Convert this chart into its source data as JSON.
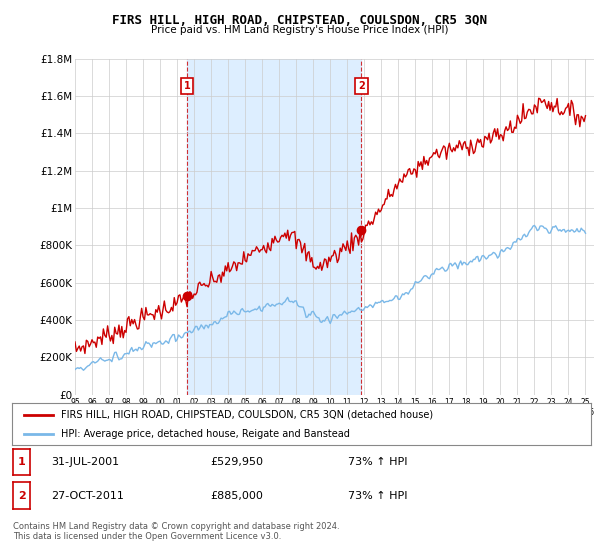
{
  "title": "FIRS HILL, HIGH ROAD, CHIPSTEAD, COULSDON, CR5 3QN",
  "subtitle": "Price paid vs. HM Land Registry's House Price Index (HPI)",
  "ylim": [
    0,
    1800000
  ],
  "yticks": [
    0,
    200000,
    400000,
    600000,
    800000,
    1000000,
    1200000,
    1400000,
    1600000,
    1800000
  ],
  "ytick_labels": [
    "£0",
    "£200K",
    "£400K",
    "£600K",
    "£800K",
    "£1M",
    "£1.2M",
    "£1.4M",
    "£1.6M",
    "£1.8M"
  ],
  "hpi_color": "#7ab8e8",
  "price_color": "#cc0000",
  "shade_color": "#ddeeff",
  "marker1_x": 2001.58,
  "marker1_y": 529950,
  "marker1_label": "1",
  "marker2_x": 2011.83,
  "marker2_y": 885000,
  "marker2_label": "2",
  "vline1_x": 2001.58,
  "vline2_x": 2011.83,
  "legend_price_label": "FIRS HILL, HIGH ROAD, CHIPSTEAD, COULSDON, CR5 3QN (detached house)",
  "legend_hpi_label": "HPI: Average price, detached house, Reigate and Banstead",
  "table_rows": [
    {
      "num": "1",
      "date": "31-JUL-2001",
      "price": "£529,950",
      "change": "73% ↑ HPI"
    },
    {
      "num": "2",
      "date": "27-OCT-2011",
      "price": "£885,000",
      "change": "73% ↑ HPI"
    }
  ],
  "footer": "Contains HM Land Registry data © Crown copyright and database right 2024.\nThis data is licensed under the Open Government Licence v3.0.",
  "background_color": "#ffffff",
  "grid_color": "#cccccc",
  "xmin": 1995.0,
  "xmax": 2025.5
}
